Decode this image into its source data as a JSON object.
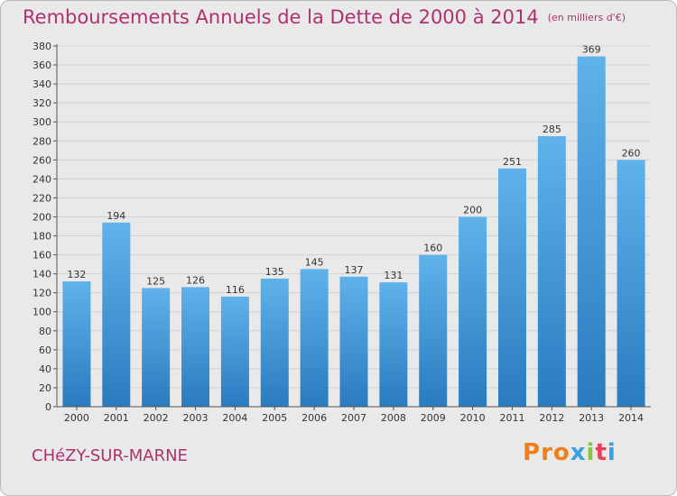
{
  "chart_data": {
    "type": "bar",
    "title": "Remboursements Annuels de la Dette de 2000 à 2014",
    "unit_label": "(en milliers d'€)",
    "categories": [
      "2000",
      "2001",
      "2002",
      "2003",
      "2004",
      "2005",
      "2006",
      "2007",
      "2008",
      "2009",
      "2010",
      "2011",
      "2012",
      "2013",
      "2014"
    ],
    "values": [
      132,
      194,
      125,
      126,
      116,
      135,
      145,
      137,
      131,
      160,
      200,
      251,
      285,
      369,
      260
    ],
    "ylim": [
      0,
      380
    ],
    "ytick_step": 20,
    "yticks": [
      "0",
      "20",
      "40",
      "60",
      "80",
      "100",
      "120",
      "140",
      "160",
      "180",
      "200",
      "220",
      "240",
      "260",
      "280",
      "300",
      "320",
      "340",
      "360",
      "380"
    ],
    "grid": true,
    "xlabel": "",
    "ylabel": ""
  },
  "footer": {
    "commune": "CHéZY-SUR-MARNE",
    "brand_letters": [
      "P",
      "r",
      "o",
      "x",
      "i",
      "t",
      "i"
    ]
  },
  "colors": {
    "title": "#b0306f",
    "bar_top": "#5fb2ea",
    "bar_bottom": "#2a7bbf",
    "grid": "#d2d2d2",
    "brand": [
      "#ee7f1a",
      "#ee7f1a",
      "#ee7f1a",
      "#3aa0e0",
      "#8cc63f",
      "#e9405a",
      "#3aa0e0"
    ]
  }
}
